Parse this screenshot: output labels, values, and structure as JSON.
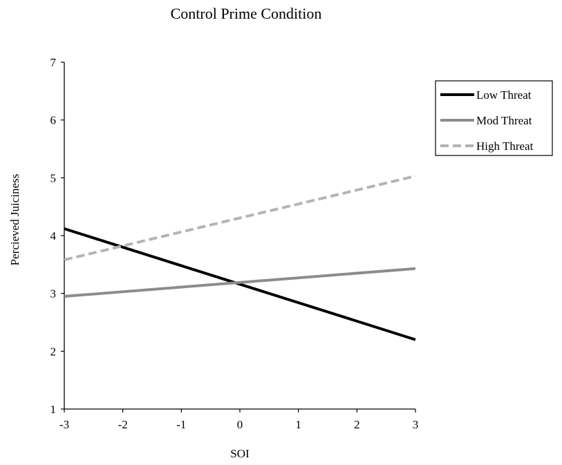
{
  "chart_data": {
    "type": "line",
    "title": "Control Prime Condition",
    "xlabel": "SOI",
    "ylabel": "Percieved Juiciness",
    "xlim": [
      -3,
      3
    ],
    "ylim": [
      1,
      7
    ],
    "x_ticks": [
      -3,
      -2,
      -1,
      0,
      1,
      2,
      3
    ],
    "y_ticks": [
      1,
      2,
      3,
      4,
      5,
      6,
      7
    ],
    "x_tick_labels": [
      "-3",
      "-2",
      "-1",
      "0",
      "1",
      "2",
      "3"
    ],
    "y_tick_labels": [
      "1",
      "2",
      "3",
      "4",
      "5",
      "6",
      "7"
    ],
    "grid": false,
    "legend_position": "top-right",
    "series": [
      {
        "name": "Low Threat",
        "x": [
          -3,
          3
        ],
        "values": [
          4.12,
          2.2
        ],
        "color": "#000000",
        "style": "solid"
      },
      {
        "name": "Mod Threat",
        "x": [
          -3,
          3
        ],
        "values": [
          2.95,
          3.43
        ],
        "color": "#8c8c8c",
        "style": "solid"
      },
      {
        "name": "High Threat",
        "x": [
          -3,
          3
        ],
        "values": [
          3.58,
          5.03
        ],
        "color": "#b4b4b4",
        "style": "dashed"
      }
    ]
  }
}
